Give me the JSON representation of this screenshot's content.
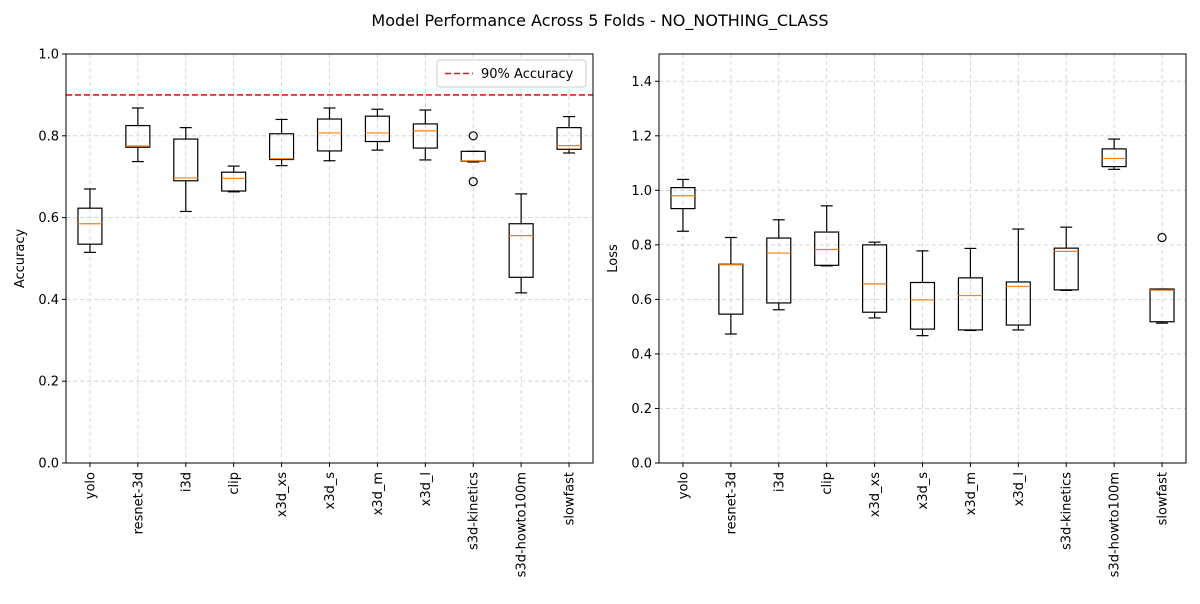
{
  "figure": {
    "suptitle": "Model Performance Across 5 Folds - NO_NOTHING_CLASS"
  },
  "chart_data": [
    {
      "type": "box",
      "title": "",
      "xlabel": "",
      "ylabel": "Accuracy",
      "ylim": [
        0,
        1.0
      ],
      "yticks": [
        "0.0",
        "0.2",
        "0.4",
        "0.6",
        "0.8",
        "1.0"
      ],
      "grid": true,
      "categories": [
        "yolo",
        "resnet-3d",
        "i3d",
        "clip",
        "x3d_xs",
        "x3d_s",
        "x3d_m",
        "x3d_l",
        "s3d-kinetics",
        "s3d-howto100m",
        "slowfast"
      ],
      "boxes": [
        {
          "whislo": 0.515,
          "q1": 0.535,
          "med": 0.585,
          "q3": 0.623,
          "whishi": 0.67,
          "fliers": []
        },
        {
          "whislo": 0.737,
          "q1": 0.772,
          "med": 0.775,
          "q3": 0.825,
          "whishi": 0.868,
          "fliers": []
        },
        {
          "whislo": 0.615,
          "q1": 0.69,
          "med": 0.697,
          "q3": 0.792,
          "whishi": 0.82,
          "fliers": []
        },
        {
          "whislo": 0.663,
          "q1": 0.665,
          "med": 0.696,
          "q3": 0.711,
          "whishi": 0.726,
          "fliers": []
        },
        {
          "whislo": 0.727,
          "q1": 0.742,
          "med": 0.744,
          "q3": 0.805,
          "whishi": 0.84,
          "fliers": []
        },
        {
          "whislo": 0.739,
          "q1": 0.763,
          "med": 0.807,
          "q3": 0.841,
          "whishi": 0.868,
          "fliers": []
        },
        {
          "whislo": 0.765,
          "q1": 0.786,
          "med": 0.807,
          "q3": 0.848,
          "whishi": 0.865,
          "fliers": []
        },
        {
          "whislo": 0.741,
          "q1": 0.77,
          "med": 0.812,
          "q3": 0.829,
          "whishi": 0.863,
          "fliers": []
        },
        {
          "whislo": 0.736,
          "q1": 0.738,
          "med": 0.739,
          "q3": 0.762,
          "whishi": 0.762,
          "fliers": [
            0.8,
            0.688
          ]
        },
        {
          "whislo": 0.416,
          "q1": 0.454,
          "med": 0.556,
          "q3": 0.585,
          "whishi": 0.658,
          "fliers": []
        },
        {
          "whislo": 0.758,
          "q1": 0.767,
          "med": 0.776,
          "q3": 0.82,
          "whishi": 0.847,
          "fliers": []
        }
      ],
      "reference_line": {
        "y": 0.9,
        "label": "90% Accuracy",
        "color": "#e41a1c"
      },
      "legend_location": "top-right",
      "colors": {
        "box": "#000000",
        "median": "#ff7f0e",
        "grid": "#cccccc"
      }
    },
    {
      "type": "box",
      "title": "",
      "xlabel": "",
      "ylabel": "Loss",
      "ylim": [
        0,
        1.5
      ],
      "yticks": [
        "0.0",
        "0.2",
        "0.4",
        "0.6",
        "0.8",
        "1.0",
        "1.2",
        "1.4"
      ],
      "grid": true,
      "categories": [
        "yolo",
        "resnet-3d",
        "i3d",
        "clip",
        "x3d_xs",
        "x3d_s",
        "x3d_m",
        "x3d_l",
        "s3d-kinetics",
        "s3d-howto100m",
        "slowfast"
      ],
      "boxes": [
        {
          "whislo": 0.85,
          "q1": 0.933,
          "med": 0.98,
          "q3": 1.01,
          "whishi": 1.04,
          "fliers": []
        },
        {
          "whislo": 0.473,
          "q1": 0.546,
          "med": 0.727,
          "q3": 0.729,
          "whishi": 0.827,
          "fliers": []
        },
        {
          "whislo": 0.562,
          "q1": 0.587,
          "med": 0.77,
          "q3": 0.825,
          "whishi": 0.892,
          "fliers": []
        },
        {
          "whislo": 0.723,
          "q1": 0.725,
          "med": 0.783,
          "q3": 0.847,
          "whishi": 0.943,
          "fliers": []
        },
        {
          "whislo": 0.532,
          "q1": 0.553,
          "med": 0.657,
          "q3": 0.8,
          "whishi": 0.81,
          "fliers": []
        },
        {
          "whislo": 0.467,
          "q1": 0.491,
          "med": 0.598,
          "q3": 0.662,
          "whishi": 0.778,
          "fliers": []
        },
        {
          "whislo": 0.486,
          "q1": 0.488,
          "med": 0.614,
          "q3": 0.679,
          "whishi": 0.787,
          "fliers": []
        },
        {
          "whislo": 0.488,
          "q1": 0.506,
          "med": 0.648,
          "q3": 0.664,
          "whishi": 0.858,
          "fliers": []
        },
        {
          "whislo": 0.633,
          "q1": 0.635,
          "med": 0.776,
          "q3": 0.788,
          "whishi": 0.865,
          "fliers": []
        },
        {
          "whislo": 1.077,
          "q1": 1.087,
          "med": 1.117,
          "q3": 1.152,
          "whishi": 1.188,
          "fliers": []
        },
        {
          "whislo": 0.513,
          "q1": 0.518,
          "med": 0.634,
          "q3": 0.638,
          "whishi": 0.638,
          "fliers": [
            0.827
          ]
        }
      ],
      "colors": {
        "box": "#000000",
        "median": "#ff7f0e",
        "grid": "#cccccc"
      }
    }
  ]
}
